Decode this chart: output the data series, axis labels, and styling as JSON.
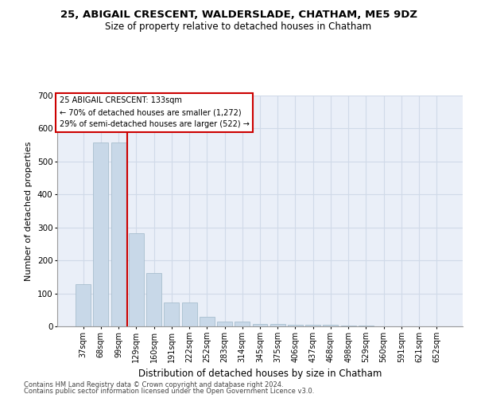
{
  "title1": "25, ABIGAIL CRESCENT, WALDERSLADE, CHATHAM, ME5 9DZ",
  "title2": "Size of property relative to detached houses in Chatham",
  "xlabel": "Distribution of detached houses by size in Chatham",
  "ylabel": "Number of detached properties",
  "footnote1": "Contains HM Land Registry data © Crown copyright and database right 2024.",
  "footnote2": "Contains public sector information licensed under the Open Government Licence v3.0.",
  "categories": [
    "37sqm",
    "68sqm",
    "99sqm",
    "129sqm",
    "160sqm",
    "191sqm",
    "222sqm",
    "252sqm",
    "283sqm",
    "314sqm",
    "345sqm",
    "375sqm",
    "406sqm",
    "437sqm",
    "468sqm",
    "498sqm",
    "529sqm",
    "560sqm",
    "591sqm",
    "621sqm",
    "652sqm"
  ],
  "values": [
    128,
    557,
    557,
    283,
    162,
    72,
    72,
    30,
    15,
    15,
    8,
    8,
    5,
    5,
    5,
    2,
    2,
    0,
    0,
    0,
    0
  ],
  "bar_color": "#c8d8e8",
  "bar_edge_color": "#a8bece",
  "grid_color": "#d0dae8",
  "vline_color": "#cc0000",
  "vline_x_index": 3,
  "annotation_text": "25 ABIGAIL CRESCENT: 133sqm\n← 70% of detached houses are smaller (1,272)\n29% of semi-detached houses are larger (522) →",
  "annotation_box_color": "white",
  "annotation_box_edge": "#cc0000",
  "ylim": [
    0,
    700
  ],
  "yticks": [
    0,
    100,
    200,
    300,
    400,
    500,
    600,
    700
  ],
  "bg_color": "#eaeff8",
  "title1_fontsize": 9.5,
  "title2_fontsize": 8.5,
  "ylabel_fontsize": 8,
  "xlabel_fontsize": 8.5,
  "tick_fontsize": 7,
  "footnote_fontsize": 6.0
}
